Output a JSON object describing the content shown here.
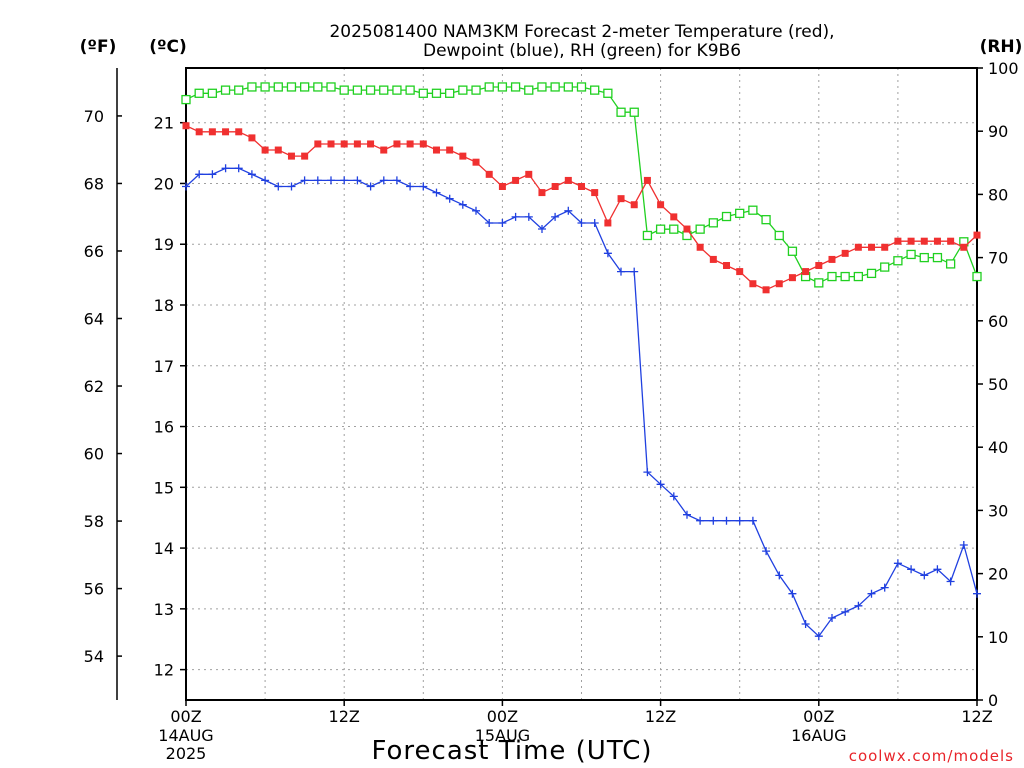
{
  "title_line1": "2025081400 NAM3KM Forecast 2-meter Temperature (red),",
  "title_line2": "Dewpoint (blue), RH (green) for K9B6",
  "unit_f": "(ºF)",
  "unit_c": "(ºC)",
  "unit_rh": "(RH)",
  "xlabel": "Forecast Time (UTC)",
  "credit": "coolwx.com/models",
  "x_ticks": [
    {
      "hour": 0,
      "line1": "00Z",
      "line2": "14AUG",
      "line3": "2025"
    },
    {
      "hour": 12,
      "line1": "12Z",
      "line2": "",
      "line3": ""
    },
    {
      "hour": 24,
      "line1": "00Z",
      "line2": "15AUG",
      "line3": ""
    },
    {
      "hour": 36,
      "line1": "12Z",
      "line2": "",
      "line3": ""
    },
    {
      "hour": 48,
      "line1": "00Z",
      "line2": "16AUG",
      "line3": ""
    },
    {
      "hour": 60,
      "line1": "12Z",
      "line2": "",
      "line3": ""
    }
  ],
  "chart_data": {
    "type": "line",
    "x_unit": "forecast hours from 2025-08-14 00Z",
    "xlim": [
      0,
      60
    ],
    "ylim_c": [
      11.5,
      21.9
    ],
    "ylim_rh": [
      0,
      100
    ],
    "yticks_c": [
      12,
      13,
      14,
      15,
      16,
      17,
      18,
      19,
      20,
      21
    ],
    "yticks_f": [
      54,
      56,
      58,
      60,
      62,
      64,
      66,
      68,
      70
    ],
    "yticks_rh": [
      0,
      10,
      20,
      30,
      40,
      50,
      60,
      70,
      80,
      90,
      100
    ],
    "grid": true,
    "colors": {
      "temperature": "#f03030",
      "dewpoint": "#2040e0",
      "rh": "#20d020",
      "grid": "#a0a0a0"
    },
    "temperature_c": [
      20.95,
      20.85,
      20.85,
      20.85,
      20.85,
      20.75,
      20.55,
      20.55,
      20.45,
      20.45,
      20.65,
      20.65,
      20.65,
      20.65,
      20.65,
      20.55,
      20.65,
      20.65,
      20.65,
      20.55,
      20.55,
      20.45,
      20.35,
      20.15,
      19.95,
      20.05,
      20.15,
      19.85,
      19.95,
      20.05,
      19.95,
      19.85,
      19.35,
      19.75,
      19.65,
      20.05,
      19.65,
      19.45,
      19.25,
      18.95,
      18.75,
      18.65,
      18.55,
      18.35,
      18.25,
      18.35,
      18.45,
      18.55,
      18.65,
      18.75,
      18.85,
      18.95,
      18.95,
      18.95,
      19.05,
      19.05,
      19.05,
      19.05,
      19.05,
      18.95,
      19.15
    ],
    "dewpoint_c": [
      19.95,
      20.15,
      20.15,
      20.25,
      20.25,
      20.15,
      20.05,
      19.95,
      19.95,
      20.05,
      20.05,
      20.05,
      20.05,
      20.05,
      19.95,
      20.05,
      20.05,
      19.95,
      19.95,
      19.85,
      19.75,
      19.65,
      19.55,
      19.35,
      19.35,
      19.45,
      19.45,
      19.25,
      19.45,
      19.55,
      19.35,
      19.35,
      18.85,
      18.55,
      18.55,
      15.25,
      15.05,
      14.85,
      14.55,
      14.45,
      14.45,
      14.45,
      14.45,
      14.45,
      13.95,
      13.55,
      13.25,
      12.75,
      12.55,
      12.85,
      12.95,
      13.05,
      13.25,
      13.35,
      13.75,
      13.65,
      13.55,
      13.65,
      13.45,
      14.05,
      13.25
    ],
    "rh_percent": [
      95,
      96,
      96,
      96.5,
      96.5,
      97,
      97,
      97,
      97,
      97,
      97,
      97,
      96.5,
      96.5,
      96.5,
      96.5,
      96.5,
      96.5,
      96,
      96,
      96,
      96.5,
      96.5,
      97,
      97,
      97,
      96.5,
      97,
      97,
      97,
      97,
      96.5,
      96,
      93,
      93,
      73.5,
      74.5,
      74.5,
      73.5,
      74.5,
      75.5,
      76.5,
      77,
      77.5,
      76,
      73.5,
      71,
      67,
      66,
      67,
      67,
      67,
      67.5,
      68.5,
      69.5,
      70.5,
      70,
      70,
      69,
      72.5,
      67
    ]
  }
}
